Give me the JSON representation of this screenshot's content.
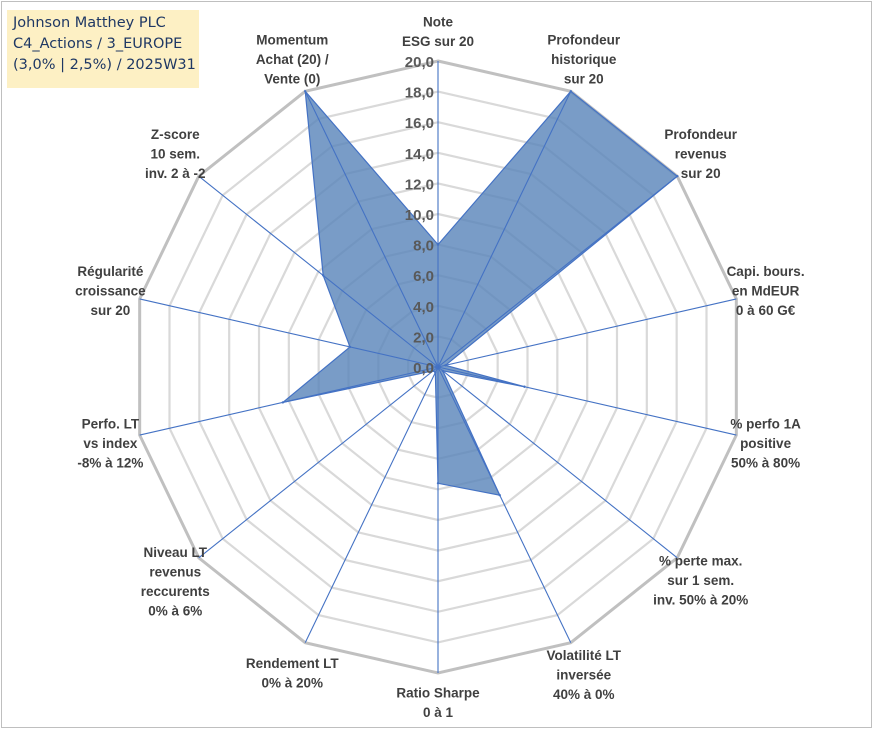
{
  "title": {
    "line1": "Johnson Matthey PLC",
    "line2": "C4_Actions / 3_EUROPE",
    "line3": "(3,0% | 2,5%) / 2025W31"
  },
  "colors": {
    "fill": "#5b86bb",
    "stroke": "#4472c4",
    "grid": "#d9d9d9",
    "title_bg": "#fdf0c4"
  },
  "chart_data": {
    "type": "radar",
    "rlim": [
      0,
      20
    ],
    "rticks": [
      "0,0",
      "2,0",
      "4,0",
      "6,0",
      "8,0",
      "10,0",
      "12,0",
      "14,0",
      "16,0",
      "18,0",
      "20,0"
    ],
    "grid": true,
    "categories": [
      [
        "Note",
        "ESG sur 20"
      ],
      [
        "Profondeur",
        "historique",
        "sur 20"
      ],
      [
        "Profondeur",
        "revenus",
        "sur 20"
      ],
      [
        "Capi. bours.",
        "en MdEUR",
        "0 à 60 G€"
      ],
      [
        "% perfo 1A",
        "positive",
        "50% à 80%"
      ],
      [
        "% perte max.",
        "sur 1 sem.",
        "inv. 50% à 20%"
      ],
      [
        "Volatilité LT",
        "inversée",
        "40% à 0%"
      ],
      [
        "Ratio Sharpe",
        "0 à 1"
      ],
      [
        "Rendement LT",
        "0% à 20%"
      ],
      [
        "Niveau LT",
        "revenus",
        "reccurents",
        "0% à 6%"
      ],
      [
        "Perfo. LT",
        "vs index",
        "-8% à 12%"
      ],
      [
        "Régularité",
        "croissance",
        "sur 20"
      ],
      [
        "Z-score",
        "10 sem.",
        "inv. 2 à -2"
      ],
      [
        "Momentum",
        "Achat (20) /",
        "Vente (0)"
      ]
    ],
    "series": [
      {
        "values": [
          8.0,
          20.0,
          20.0,
          0.5,
          5.8,
          0.4,
          9.3,
          7.6,
          0.4,
          0.4,
          10.4,
          5.9,
          9.6,
          20.0
        ]
      }
    ]
  }
}
